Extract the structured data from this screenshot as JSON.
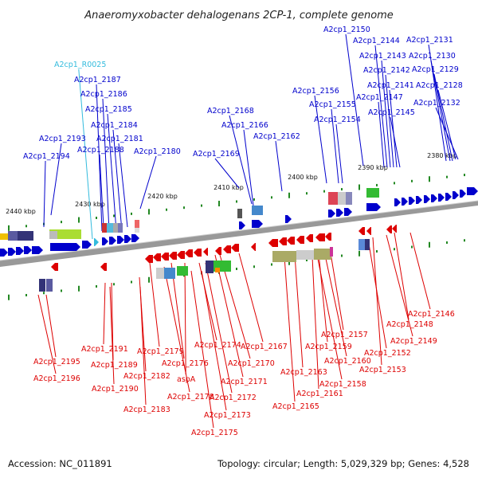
{
  "title": "Anaeromyxobacter dehalogenans 2CP-1, complete genome",
  "footer": {
    "accession": "Accession: NC_011891",
    "summary": "Topology: circular; Length: 5,029,329 bp; Genes: 4,528"
  },
  "colors": {
    "forward_gene": "#0000cc",
    "reverse_gene": "#dd0000",
    "rna_gene": "#33bbdd",
    "backbone": "#888888",
    "tick": "#228822"
  },
  "scale_ticks": [
    {
      "label": "2440 kbp"
    },
    {
      "label": "2430 kbp"
    },
    {
      "label": "2420 kbp"
    },
    {
      "label": "2410 kbp"
    },
    {
      "label": "2400 kbp"
    },
    {
      "label": "2390 kbp"
    },
    {
      "label": "2380 kbp"
    }
  ],
  "forward_labels": [
    {
      "text": "A2cp1_R0025",
      "kind": "rna"
    },
    {
      "text": "A2cp1_2187"
    },
    {
      "text": "A2cp1_2186"
    },
    {
      "text": "A2cp1_2185"
    },
    {
      "text": "A2cp1_2184"
    },
    {
      "text": "A2cp1_2193"
    },
    {
      "text": "A2cp1_2181"
    },
    {
      "text": "A2cp1_2188"
    },
    {
      "text": "A2cp1_2180"
    },
    {
      "text": "A2cp1_2194"
    },
    {
      "text": "A2cp1_2168"
    },
    {
      "text": "A2cp1_2166"
    },
    {
      "text": "A2cp1_2162"
    },
    {
      "text": "A2cp1_2169"
    },
    {
      "text": "A2cp1_2156"
    },
    {
      "text": "A2cp1_2155"
    },
    {
      "text": "A2cp1_2154"
    },
    {
      "text": "A2cp1_2150"
    },
    {
      "text": "A2cp1_2144"
    },
    {
      "text": "A2cp1_2131"
    },
    {
      "text": "A2cp1_2143"
    },
    {
      "text": "A2cp1_2130"
    },
    {
      "text": "A2cp1_2142"
    },
    {
      "text": "A2cp1_2129"
    },
    {
      "text": "A2cp1_2141"
    },
    {
      "text": "A2cp1_2128"
    },
    {
      "text": "A2cp1_2147"
    },
    {
      "text": "A2cp1_2132"
    },
    {
      "text": "A2cp1_2145"
    }
  ],
  "reverse_labels": [
    {
      "text": "A2cp1_2146"
    },
    {
      "text": "A2cp1_2148"
    },
    {
      "text": "A2cp1_2157"
    },
    {
      "text": "A2cp1_2149"
    },
    {
      "text": "A2cp1_2191"
    },
    {
      "text": "A2cp1_2179"
    },
    {
      "text": "A2cp1_2174"
    },
    {
      "text": "A2cp1_2167"
    },
    {
      "text": "A2cp1_2159"
    },
    {
      "text": "A2cp1_2152"
    },
    {
      "text": "A2cp1_2195"
    },
    {
      "text": "A2cp1_2189"
    },
    {
      "text": "A2cp1_2176"
    },
    {
      "text": "A2cp1_2170"
    },
    {
      "text": "A2cp1_2160"
    },
    {
      "text": "A2cp1_2153"
    },
    {
      "text": "A2cp1_2182"
    },
    {
      "text": "aspA"
    },
    {
      "text": "A2cp1_2163"
    },
    {
      "text": "A2cp1_2196"
    },
    {
      "text": "A2cp1_2171"
    },
    {
      "text": "A2cp1_2158"
    },
    {
      "text": "A2cp1_2190"
    },
    {
      "text": "A2cp1_2178"
    },
    {
      "text": "A2cp1_2172"
    },
    {
      "text": "A2cp1_2161"
    },
    {
      "text": "A2cp1_2183"
    },
    {
      "text": "A2cp1_2165"
    },
    {
      "text": "A2cp1_2173"
    },
    {
      "text": "A2cp1_2175"
    }
  ]
}
